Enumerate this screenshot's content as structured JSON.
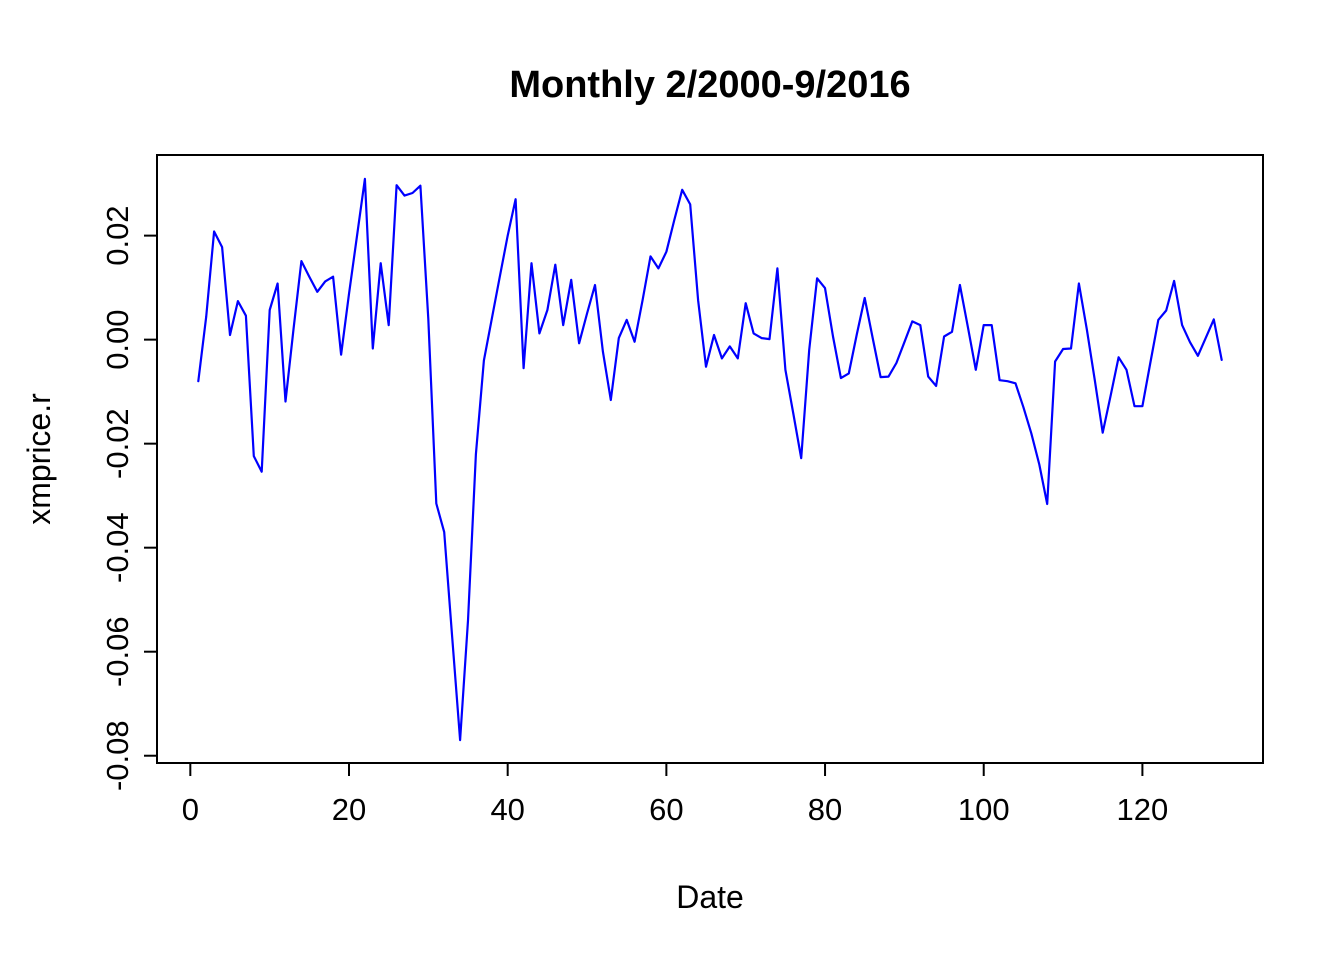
{
  "window": {
    "background": "#ffffff"
  },
  "chart_data": {
    "type": "line",
    "title": "Monthly 2/2000-9/2016",
    "xlabel": "Date",
    "ylabel": "xmprice.r",
    "series_name": "xmprice.r",
    "line_color": "#0000FF",
    "axis_color": "#000000",
    "grid": false,
    "legend": false,
    "x_ticks": [
      0,
      20,
      40,
      60,
      80,
      100,
      120
    ],
    "y_ticks": [
      0.02,
      0.0,
      -0.02,
      -0.04,
      -0.06,
      -0.08
    ],
    "xlim": [
      -4.2,
      135.2
    ],
    "ylim": [
      -0.0814,
      0.0355
    ],
    "x_start": 1,
    "x_step": 1,
    "x": [
      1,
      2,
      3,
      4,
      5,
      6,
      7,
      8,
      9,
      10,
      11,
      12,
      13,
      14,
      15,
      16,
      17,
      18,
      19,
      20,
      21,
      22,
      23,
      24,
      25,
      26,
      27,
      28,
      29,
      30,
      31,
      32,
      33,
      34,
      35,
      36,
      37,
      38,
      39,
      40,
      41,
      42,
      43,
      44,
      45,
      46,
      47,
      48,
      49,
      50,
      51,
      52,
      53,
      54,
      55,
      56,
      57,
      58,
      59,
      60,
      61,
      62,
      63,
      64,
      65,
      66,
      67,
      68,
      69,
      70,
      71,
      72,
      73,
      74,
      75,
      76,
      77,
      78,
      79,
      80,
      81,
      82,
      83,
      84,
      85,
      86,
      87,
      88,
      89,
      90,
      91,
      92,
      93,
      94,
      95,
      96,
      97,
      98,
      99,
      100,
      101,
      102,
      103,
      104,
      105,
      106,
      107,
      108,
      109,
      110,
      111,
      112,
      113,
      114,
      115,
      116,
      117,
      118,
      119,
      120,
      121,
      122,
      123,
      124,
      125,
      126,
      127,
      128,
      129,
      130
    ],
    "values": [
      -0.008,
      0.0044,
      0.0208,
      0.0178,
      0.0009,
      0.0074,
      0.0046,
      -0.0224,
      -0.0254,
      0.0057,
      0.0108,
      -0.0119,
      0.002,
      0.0151,
      0.0121,
      0.0092,
      0.0112,
      0.0121,
      -0.0029,
      0.0088,
      0.0198,
      0.0309,
      -0.0017,
      0.0147,
      0.0028,
      0.0297,
      0.0277,
      0.0282,
      0.0296,
      0.004,
      -0.0315,
      -0.037,
      -0.057,
      -0.077,
      -0.054,
      -0.022,
      -0.004,
      0.004,
      0.012,
      0.02,
      0.027,
      -0.0055,
      0.0147,
      0.0012,
      0.0057,
      0.0144,
      0.0028,
      0.0115,
      -0.0007,
      0.005,
      0.0105,
      -0.0023,
      -0.0116,
      0.0003,
      0.0038,
      -0.0004,
      0.0076,
      0.016,
      0.0137,
      0.0169,
      0.023,
      0.0288,
      0.026,
      0.0076,
      -0.0052,
      0.0009,
      -0.0036,
      -0.0013,
      -0.0036,
      0.007,
      0.0012,
      0.0003,
      0.0001,
      0.0137,
      -0.0058,
      -0.0142,
      -0.0228,
      -0.002,
      0.0118,
      0.0099,
      0.0006,
      -0.0074,
      -0.0065,
      0.001,
      0.008,
      0.0004,
      -0.0072,
      -0.0071,
      -0.0045,
      -0.0005,
      0.0035,
      0.0028,
      -0.0071,
      -0.0089,
      0.0006,
      0.0015,
      0.0105,
      0.0024,
      -0.0058,
      0.0028,
      0.0028,
      -0.0078,
      -0.008,
      -0.0084,
      -0.013,
      -0.018,
      -0.024,
      -0.0316,
      -0.0042,
      -0.0018,
      -0.0017,
      0.0108,
      0.0019,
      -0.0078,
      -0.0179,
      -0.0107,
      -0.0034,
      -0.0058,
      -0.0128,
      -0.0128,
      -0.0045,
      0.0038,
      0.0056,
      0.0113,
      0.0028,
      -0.0005,
      -0.0031,
      0.0004,
      0.0039,
      -0.0039
    ]
  }
}
